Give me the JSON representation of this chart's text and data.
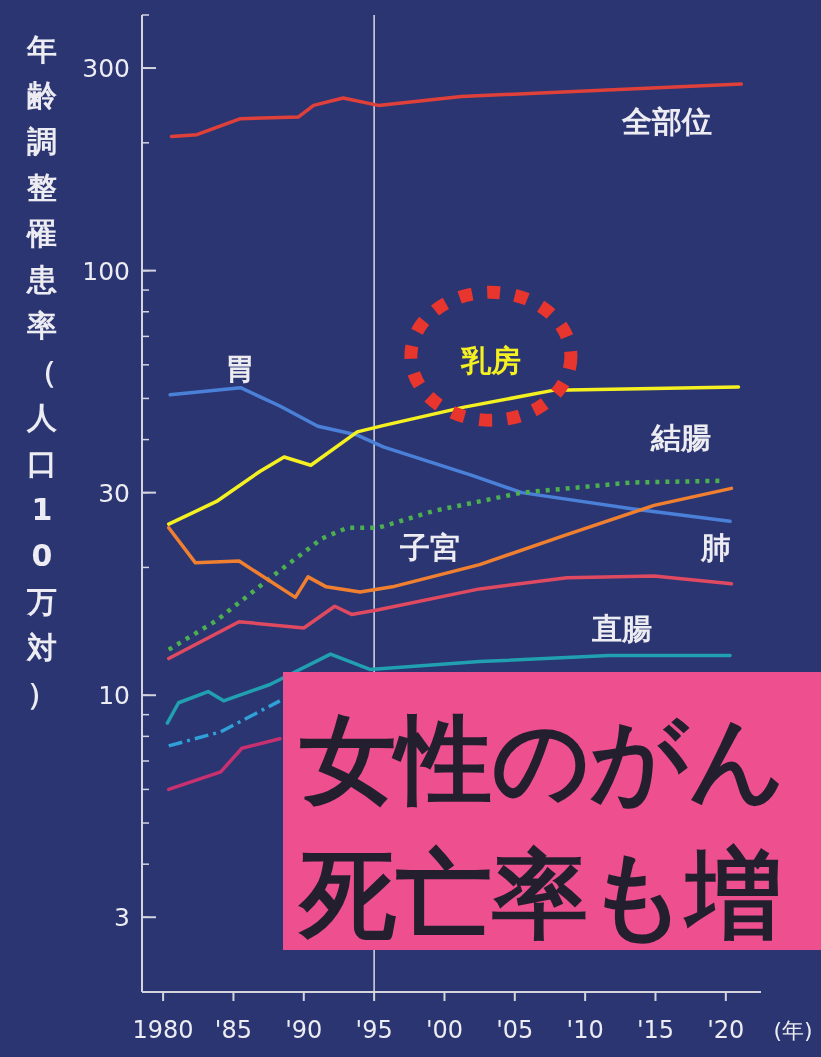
{
  "chart_data": {
    "type": "line",
    "ylabel": "年齢調整罹患率（人口10万対）",
    "xlabel": "(年)",
    "log": "y",
    "xlim": [
      1978.5,
      2022.5
    ],
    "ylim": [
      2,
      400
    ],
    "xticks": [
      1980,
      {
        "value": 1985,
        "label": "'85"
      },
      {
        "value": 1990,
        "label": "'90"
      },
      {
        "value": 1995,
        "label": "'95"
      },
      {
        "value": 2000,
        "label": "'00"
      },
      {
        "value": 2005,
        "label": "'05"
      },
      {
        "value": 2010,
        "label": "'10"
      },
      {
        "value": 2015,
        "label": "'15"
      },
      {
        "value": 2020,
        "label": "'20"
      }
    ],
    "yticks": [
      3,
      10,
      30,
      100,
      300
    ],
    "legend": false,
    "grid": false,
    "marker": "none",
    "ref_lines": [
      {
        "axis": "x",
        "value": 1995,
        "color": "#d8d8e0"
      }
    ],
    "annotations": [
      "女性のがん",
      "死亡率も増"
    ],
    "series": [
      {
        "name": "全部位",
        "color": "#e0403a",
        "x": [
          1980.6,
          1982.4,
          1985.5,
          1989.6,
          1990.7,
          1992.8,
          1995.3,
          2001.2,
          2010,
          2021.1
        ],
        "values": [
          207,
          209,
          228,
          230,
          245,
          255,
          245,
          257,
          265,
          275
        ]
      },
      {
        "name": "胃",
        "color": "#4a80d8",
        "x": [
          1980.5,
          1985.5,
          1988.3,
          1991,
          1993.8,
          1995.7,
          2001.9,
          2005.5,
          2013.3,
          2020.3
        ],
        "values": [
          51,
          53,
          48,
          43,
          41,
          38.4,
          33,
          30,
          27.5,
          25.7
        ]
      },
      {
        "name": "乳房",
        "color": "#f5f020",
        "x": [
          1980.4,
          1983.8,
          1986.9,
          1988.6,
          1990.5,
          1993.8,
          1995.7,
          2001.4,
          2007.8,
          2020.9
        ],
        "values": [
          25.3,
          28.6,
          33.7,
          36.4,
          34.8,
          41.7,
          43.2,
          47.7,
          52.3,
          53.2
        ]
      },
      {
        "name": "結腸",
        "color": "#4caf50",
        "line_style": "dotted",
        "x": [
          1980.4,
          1983.8,
          1987.8,
          1991.3,
          1993.1,
          1995.3,
          1999.3,
          2005.5,
          2013.3,
          2019.8
        ],
        "values": [
          12.8,
          15,
          19.1,
          23.4,
          24.8,
          24.8,
          27.2,
          30,
          31.7,
          32
        ]
      },
      {
        "name": "子宮",
        "color": "#f08030",
        "x": [
          1980.4,
          1982.3,
          1985.4,
          1989.4,
          1990.3,
          1991.6,
          1994,
          1996.3,
          2002.5,
          2008.7,
          2014.9,
          2020.4
        ],
        "values": [
          24.8,
          20.5,
          20.7,
          17,
          19,
          18,
          17.5,
          18,
          20.3,
          23.9,
          28,
          30.7
        ]
      },
      {
        "name": "肺",
        "color": "#e04a60",
        "x": [
          1980.4,
          1985.4,
          1990,
          1992.2,
          1993.4,
          1995.3,
          2002.5,
          2008.7,
          2014.9,
          2020.4
        ],
        "values": [
          12.2,
          14.9,
          14.4,
          16.2,
          15.5,
          15.9,
          17.8,
          18.9,
          19.1,
          18.3
        ]
      },
      {
        "name": "直腸",
        "color": "#20a0b0",
        "x": [
          1980.3,
          1981.1,
          1983.2,
          1984.3,
          1987.6,
          1991.9,
          1994.7,
          2002.5,
          2011.7,
          2020.3
        ],
        "values": [
          8.6,
          9.6,
          10.2,
          9.7,
          10.6,
          12.5,
          11.5,
          12,
          12.4,
          12.4
        ]
      },
      {
        "color": "#30a0d8",
        "line_style": "dashed",
        "x": [
          1980.4,
          1984.1,
          1988.3
        ],
        "values": [
          7.6,
          8.2,
          9.7
        ]
      },
      {
        "color": "#c83070",
        "x": [
          1980.4,
          1984.1,
          1985.6,
          1988.3
        ],
        "values": [
          6.0,
          6.6,
          7.5,
          7.9
        ]
      }
    ]
  }
}
